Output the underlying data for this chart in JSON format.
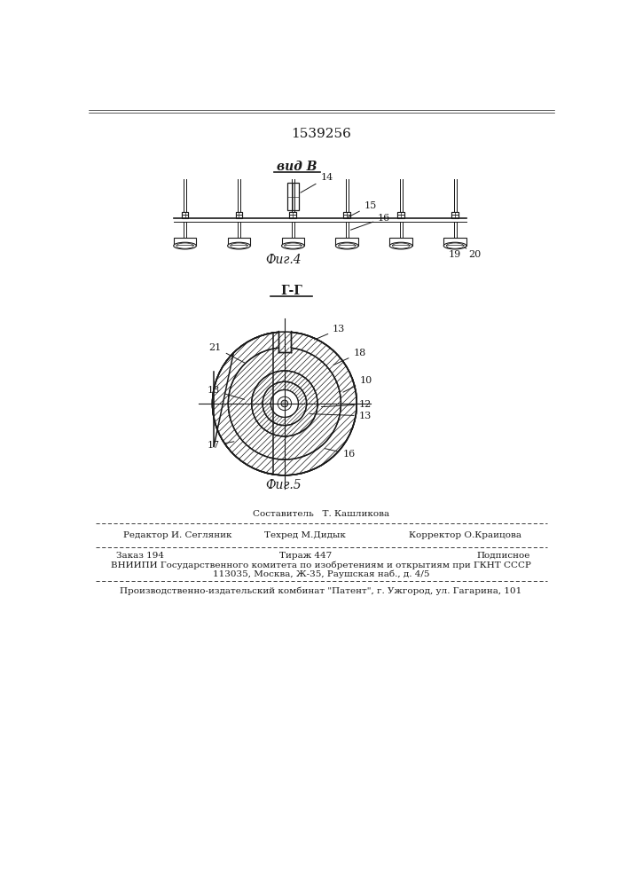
{
  "patent_number": "1539256",
  "fig4_label": "вид В",
  "fig4_caption": "Фиг.4",
  "fig5_label": "Г-Г",
  "fig5_caption": "Фиг.5",
  "footer_line0_center": "Составитель   Т. Кашликова",
  "footer_line1_left": "Редактор И. Сегляник",
  "footer_line1_center": "Техред М.Дидык",
  "footer_line1_right": "Корректор О.Краицова",
  "footer_line2_left": "Заказ 194",
  "footer_line2_center": "Тираж 447",
  "footer_line2_right": "Подписное",
  "footer_line3": "ВНИИПИ Государственного комитета по изобретениям и открытиям при ГКНТ СССР",
  "footer_line4": "113035, Москва, Ж-35, Раушская наб., д. 4/5",
  "footer_line5": "Производственно-издательский комбинат \"Патент\", г. Ужгород, ул. Гагарина, 101",
  "bg_color": "#ffffff",
  "line_color": "#1a1a1a",
  "text_color": "#1a1a1a"
}
